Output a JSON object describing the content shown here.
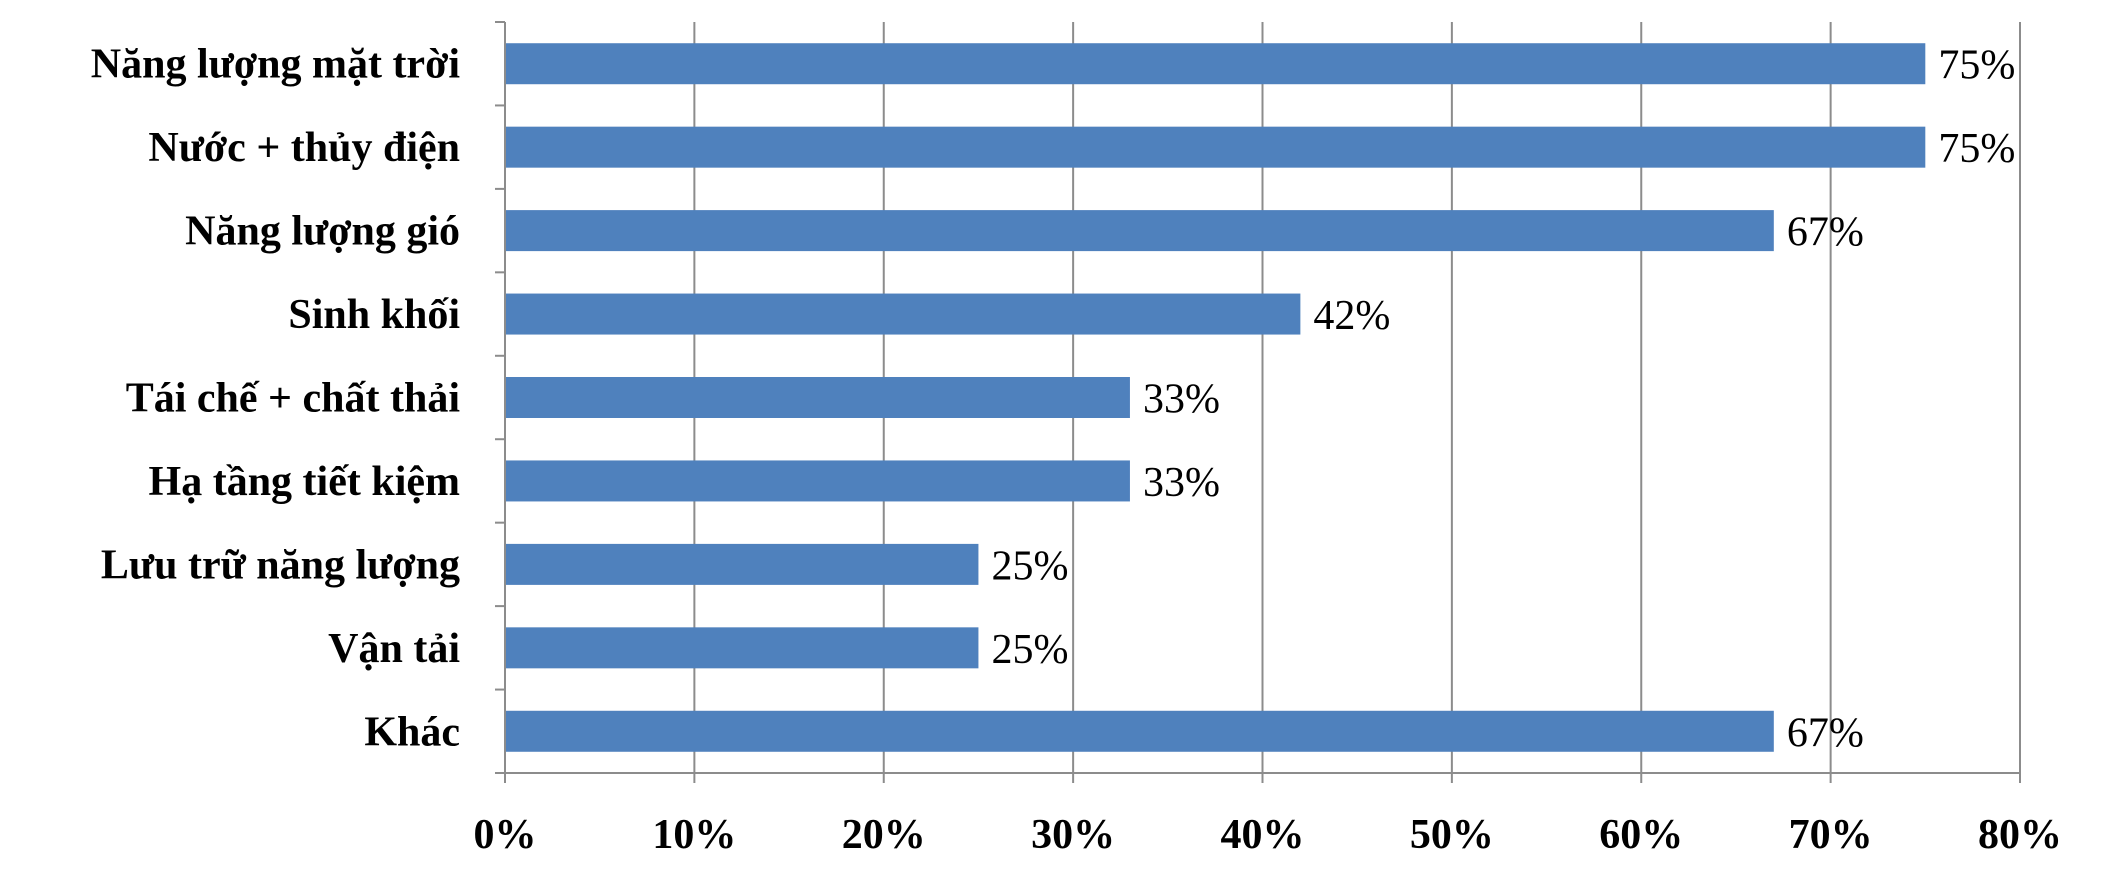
{
  "colors": {
    "bar": "#4f81bd",
    "grid": "#8c8c8c",
    "axis": "#8c8c8c"
  },
  "chart_data": {
    "type": "bar",
    "orientation": "horizontal",
    "categories": [
      "Năng lượng mặt trời",
      "Nước + thủy điện",
      "Năng lượng gió",
      "Sinh khối",
      "Tái chế + chất thải",
      "Hạ tầng tiết kiệm",
      "Lưu trữ năng lượng",
      "Vận tải",
      "Khác"
    ],
    "values": [
      75,
      75,
      67,
      42,
      33,
      33,
      25,
      25,
      67
    ],
    "data_labels": [
      "75%",
      "75%",
      "67%",
      "42%",
      "33%",
      "33%",
      "25%",
      "25%",
      "67%"
    ],
    "x_ticks": [
      0,
      10,
      20,
      30,
      40,
      50,
      60,
      70,
      80
    ],
    "x_tick_labels": [
      "0%",
      "10%",
      "20%",
      "30%",
      "40%",
      "50%",
      "60%",
      "70%",
      "80%"
    ],
    "xlim": [
      0,
      80
    ],
    "grid": "vertical",
    "legend": "none",
    "title": "",
    "xlabel": "",
    "ylabel": ""
  }
}
